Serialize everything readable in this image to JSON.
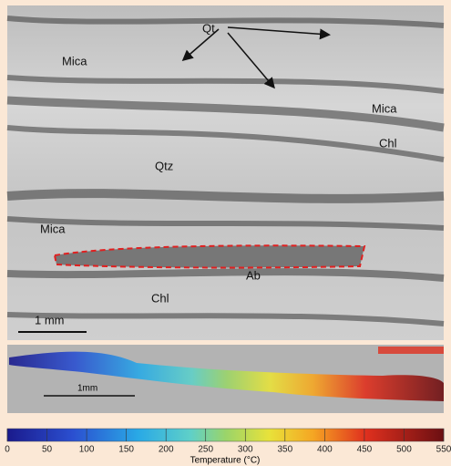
{
  "micrograph": {
    "labels": [
      "Qt",
      "Mica",
      "Mica",
      "Chl",
      "Qtz",
      "Mica",
      "Ab",
      "Chl"
    ],
    "scale_bar": "1 mm"
  },
  "temperature_map": {
    "scale_bar": "1mm"
  },
  "colorbar": {
    "range": [
      0,
      550
    ],
    "ticks": [
      0,
      50,
      100,
      150,
      200,
      250,
      300,
      350,
      400,
      450,
      500,
      550
    ],
    "label": "Temperature (°C)"
  }
}
